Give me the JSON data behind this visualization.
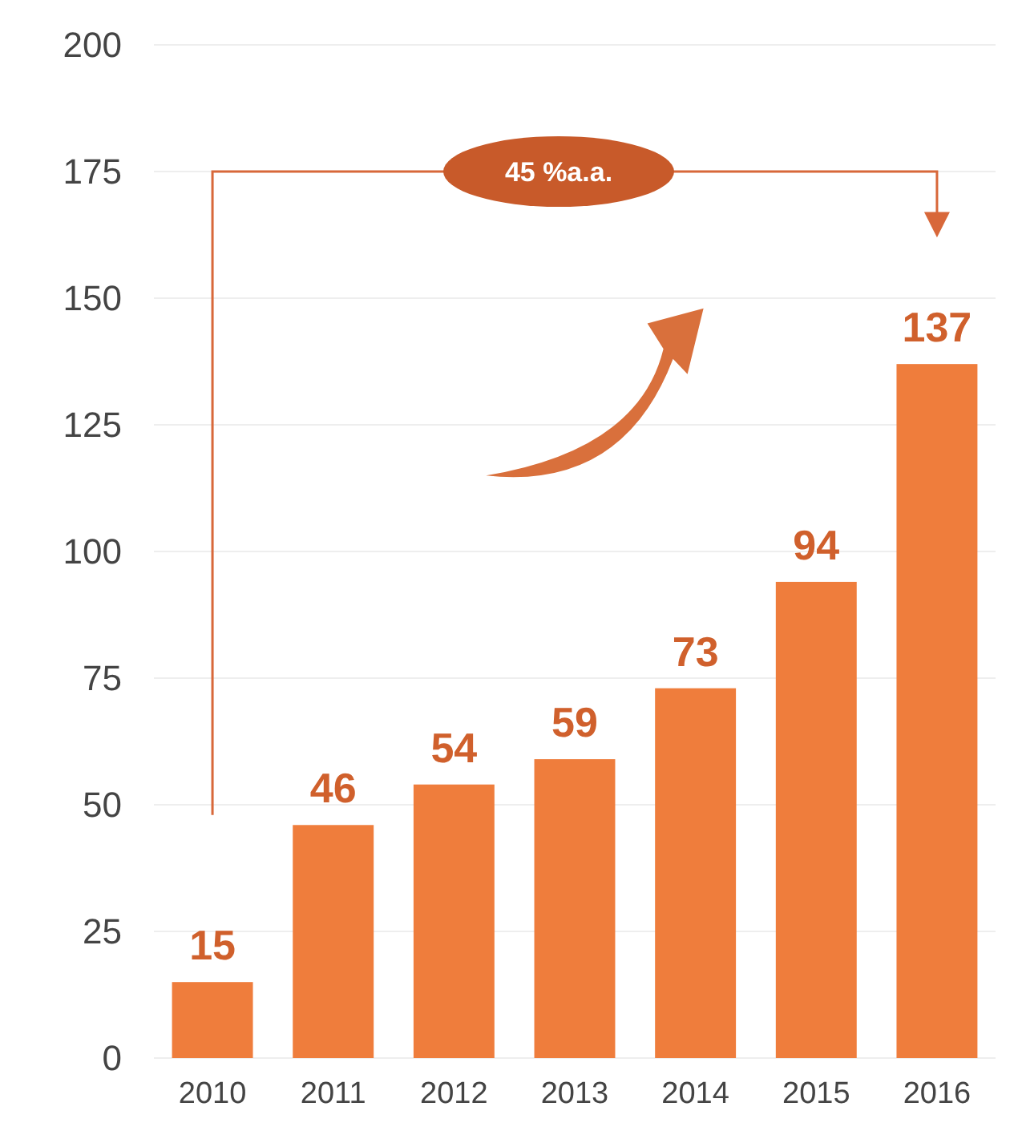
{
  "chart_data": {
    "type": "bar",
    "categories": [
      "2010",
      "2011",
      "2012",
      "2013",
      "2014",
      "2015",
      "2016"
    ],
    "values": [
      15,
      46,
      54,
      59,
      73,
      94,
      137
    ],
    "color": "#ef7d3c",
    "ylim": [
      0,
      200
    ],
    "yticks": [
      0,
      25,
      50,
      75,
      100,
      125,
      150,
      175,
      200
    ],
    "grid": "y",
    "data_labels": true,
    "annotations": [
      "45 %a.a."
    ]
  }
}
